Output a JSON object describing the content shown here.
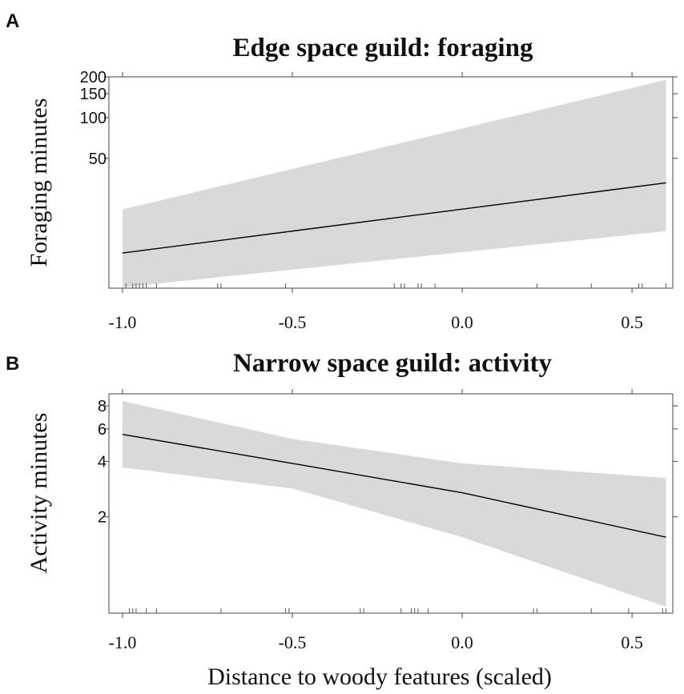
{
  "chart_data": [
    {
      "panel": "A",
      "type": "line",
      "title": "Edge space guild: foraging",
      "ylabel": "Foraging minutes",
      "xlabel": "",
      "y_scale": "log",
      "xlim": [
        -1.04,
        0.62
      ],
      "ylim": [
        5.5,
        200
      ],
      "x_ticks": [
        -1.0,
        -0.5,
        0.0,
        0.5
      ],
      "x_tick_labels": [
        "-1.0",
        "-0.5",
        "0.0",
        "0.5"
      ],
      "y_ticks": [
        50,
        100,
        150,
        200
      ],
      "y_tick_labels": [
        "50",
        "100",
        "150",
        "200"
      ],
      "series": [
        {
          "x": [
            -1.0,
            0.6
          ],
          "y": [
            10,
            33
          ],
          "ci_lower": [
            5.6,
            14.5
          ],
          "ci_upper": [
            21,
            190
          ]
        }
      ],
      "rug": [
        -0.99,
        -0.97,
        -0.96,
        -0.95,
        -0.94,
        -0.93,
        -0.9,
        -0.72,
        -0.71,
        -0.52,
        -0.2,
        -0.18,
        -0.17,
        -0.13,
        -0.12,
        -0.08,
        0.22,
        0.38,
        0.52,
        0.53,
        0.6
      ]
    },
    {
      "panel": "B",
      "type": "line",
      "title": "Narrow space guild: activity",
      "ylabel": "Activity minutes",
      "xlabel": "Distance to woody features (scaled)",
      "y_scale": "log",
      "xlim": [
        -1.04,
        0.62
      ],
      "ylim": [
        0.6,
        9.3
      ],
      "x_ticks": [
        -1.0,
        -0.5,
        0.0,
        0.5
      ],
      "x_tick_labels": [
        "-1.0",
        "-0.5",
        "0.0",
        "0.5"
      ],
      "y_ticks": [
        2,
        4,
        6,
        8
      ],
      "y_tick_labels": [
        "2",
        "4",
        "6",
        "8"
      ],
      "series": [
        {
          "x": [
            -1.0,
            -0.5,
            0.0,
            0.6
          ],
          "y": [
            5.6,
            3.9,
            2.7,
            1.55
          ],
          "ci_lower": [
            3.7,
            2.85,
            1.55,
            0.65
          ],
          "ci_upper": [
            8.5,
            5.3,
            3.9,
            3.25
          ]
        }
      ],
      "rug": [
        -0.98,
        -0.97,
        -0.96,
        -0.93,
        -0.9,
        -0.71,
        -0.52,
        -0.51,
        -0.3,
        -0.29,
        -0.18,
        -0.15,
        -0.14,
        -0.13,
        -0.1,
        0.21,
        0.22,
        0.38,
        0.49,
        0.59,
        0.6
      ]
    }
  ]
}
